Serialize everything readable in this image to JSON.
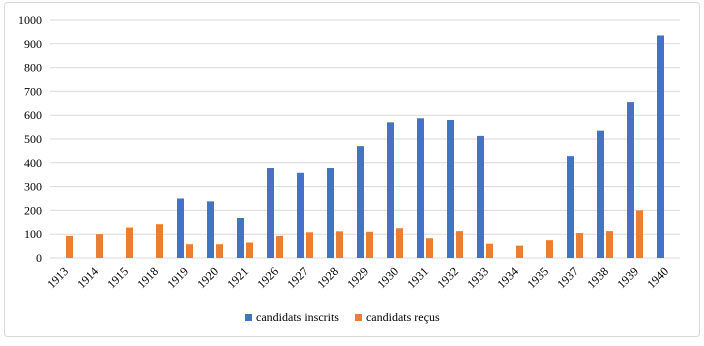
{
  "chart_data": {
    "type": "bar",
    "categories": [
      "1913",
      "1914",
      "1915",
      "1918",
      "1919",
      "1920",
      "1921",
      "1926",
      "1927",
      "1928",
      "1929",
      "1930",
      "1931",
      "1932",
      "1933",
      "1934",
      "1935",
      "1937",
      "1938",
      "1939",
      "1940"
    ],
    "series": [
      {
        "name": "candidats inscrits",
        "color": "#4472c4",
        "values": [
          null,
          null,
          null,
          null,
          250,
          238,
          168,
          378,
          358,
          378,
          470,
          570,
          587,
          580,
          513,
          null,
          null,
          428,
          535,
          655,
          935
        ]
      },
      {
        "name": "candidats reçus",
        "color": "#ed7d31",
        "values": [
          93,
          100,
          128,
          142,
          58,
          58,
          65,
          93,
          108,
          112,
          110,
          125,
          83,
          113,
          60,
          52,
          75,
          105,
          113,
          200,
          null
        ]
      }
    ],
    "ylim": [
      0,
      1000
    ],
    "yticks": [
      0,
      100,
      200,
      300,
      400,
      500,
      600,
      700,
      800,
      900,
      1000
    ],
    "grid": true
  }
}
